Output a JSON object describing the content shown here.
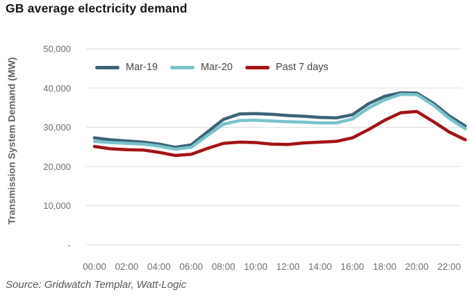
{
  "title": "GB average electricity demand",
  "source": "Source: Gridwatch Templar, Watt-Logic",
  "y_axis": {
    "label": "Transmission System Demand (MW)",
    "ticks": [
      {
        "label": "50,000",
        "value": 50000
      },
      {
        "label": "40,000",
        "value": 40000
      },
      {
        "label": "30,000",
        "value": 30000
      },
      {
        "label": "20,000",
        "value": 20000
      },
      {
        "label": "10,000",
        "value": 10000
      },
      {
        "label": "-",
        "value": 0
      }
    ]
  },
  "x_axis": {
    "ticks": [
      {
        "label": "00:00",
        "hour": 0
      },
      {
        "label": "02:00",
        "hour": 2
      },
      {
        "label": "04:00",
        "hour": 4
      },
      {
        "label": "06:00",
        "hour": 6
      },
      {
        "label": "08:00",
        "hour": 8
      },
      {
        "label": "10:00",
        "hour": 10
      },
      {
        "label": "12:00",
        "hour": 12
      },
      {
        "label": "14:00",
        "hour": 14
      },
      {
        "label": "16:00",
        "hour": 16
      },
      {
        "label": "18:00",
        "hour": 18
      },
      {
        "label": "20:00",
        "hour": 20
      },
      {
        "label": "22:00",
        "hour": 22
      }
    ]
  },
  "legend": [
    {
      "label": "Mar-19",
      "color": "#3b6478"
    },
    {
      "label": "Mar-20",
      "color": "#79c3cb"
    },
    {
      "label": "Past 7 days",
      "color": "#a31315"
    }
  ],
  "colors": {
    "gridline": "#dcdcdc",
    "axis_text": "#6d6e71",
    "title_text": "#161618",
    "source_text": "#55565a"
  },
  "chart_data": {
    "type": "line",
    "title": "GB average electricity demand",
    "xlabel": "",
    "ylabel": "Transmission System Demand (MW)",
    "ylim": [
      0,
      50000
    ],
    "gridlines": [
      0,
      10000,
      20000,
      30000,
      40000,
      50000
    ],
    "grid": "horizontal-only",
    "legend_position": "top-left-inside",
    "x_hours": [
      0,
      1,
      2,
      3,
      4,
      5,
      6,
      7,
      8,
      9,
      10,
      11,
      12,
      13,
      14,
      15,
      16,
      17,
      18,
      19,
      20,
      21,
      22,
      23
    ],
    "series": [
      {
        "name": "Mar-19",
        "color": "#3b6478",
        "values": [
          27300,
          26800,
          26500,
          26200,
          25700,
          24900,
          25500,
          28800,
          32000,
          33400,
          33500,
          33300,
          33000,
          32800,
          32500,
          32400,
          33200,
          36000,
          37900,
          38800,
          38700,
          36200,
          32900,
          30300
        ]
      },
      {
        "name": "Mar-20",
        "color": "#79c3cb",
        "values": [
          26400,
          26100,
          25900,
          25700,
          25200,
          24400,
          24900,
          27900,
          30800,
          31700,
          31800,
          31600,
          31400,
          31300,
          31100,
          31100,
          32100,
          34900,
          37000,
          38400,
          38300,
          35700,
          32300,
          29600
        ]
      },
      {
        "name": "Past 7 days",
        "color": "#a31315",
        "values": [
          25100,
          24500,
          24300,
          24200,
          23600,
          22800,
          23100,
          24600,
          25900,
          26200,
          26100,
          25700,
          25600,
          26000,
          26200,
          26400,
          27300,
          29400,
          31800,
          33700,
          34000,
          31500,
          28800,
          26800
        ]
      }
    ]
  }
}
